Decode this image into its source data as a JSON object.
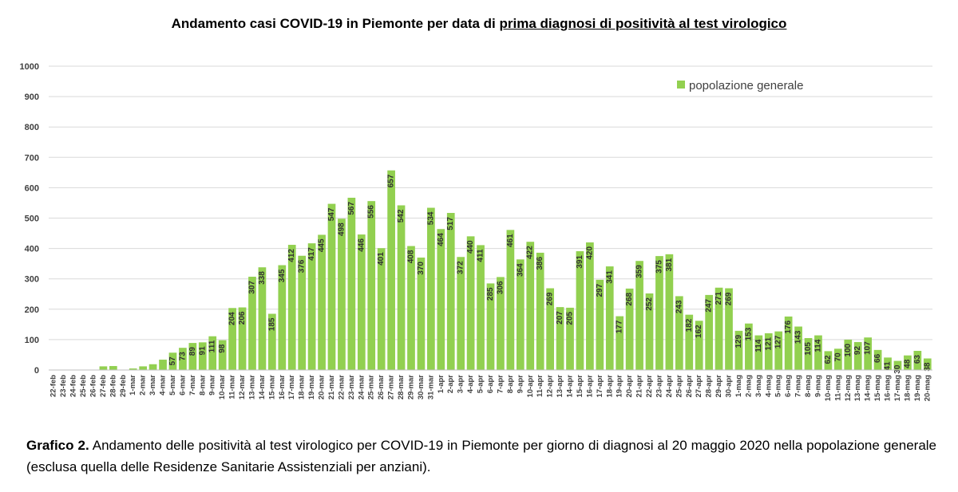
{
  "title": {
    "prefix": "Andamento casi COVID-19 in Piemonte per data di ",
    "underlined": "prima diagnosi di positività al test virologico"
  },
  "caption": {
    "label": "Grafico 2.",
    "text": " Andamento delle positività al test virologico per COVID-19 in Piemonte per giorno di diagnosi al 20 maggio 2020 nella popolazione generale (esclusa quella delle Residenze Sanitarie Assistenziali per anziani)."
  },
  "colors": {
    "bar": "#92D050",
    "grid": "#D9D9D9",
    "text": "#404040"
  },
  "chart_data": {
    "type": "bar",
    "title": "Andamento casi COVID-19 in Piemonte per data di prima diagnosi di positività al test virologico",
    "xlabel": "",
    "ylabel": "",
    "ylim": [
      0,
      1000
    ],
    "yticks": [
      0,
      100,
      200,
      300,
      400,
      500,
      600,
      700,
      800,
      900,
      1000
    ],
    "grid": true,
    "legend_position": "top-right",
    "categories": [
      "22-feb",
      "23-feb",
      "24-feb",
      "25-feb",
      "26-feb",
      "27-feb",
      "28-feb",
      "29-feb",
      "1-mar",
      "2-mar",
      "3-mar",
      "4-mar",
      "5-mar",
      "6-mar",
      "7-mar",
      "8-mar",
      "9-mar",
      "10-mar",
      "11-mar",
      "12-mar",
      "13-mar",
      "14-mar",
      "15-mar",
      "16-mar",
      "17-mar",
      "18-mar",
      "19-mar",
      "20-mar",
      "21-mar",
      "22-mar",
      "23-mar",
      "24-mar",
      "25-mar",
      "26-mar",
      "27-mar",
      "28-mar",
      "29-mar",
      "30-mar",
      "31-mar",
      "1-apr",
      "2-apr",
      "3-apr",
      "4-apr",
      "5-apr",
      "6-apr",
      "7-apr",
      "8-apr",
      "9-apr",
      "10-apr",
      "11-apr",
      "12-apr",
      "13-apr",
      "14-apr",
      "15-apr",
      "16-apr",
      "17-apr",
      "18-apr",
      "19-apr",
      "20-apr",
      "21-apr",
      "22-apr",
      "23-apr",
      "24-apr",
      "25-apr",
      "26-apr",
      "27-apr",
      "28-apr",
      "29-apr",
      "30-apr",
      "1-mag",
      "2-mag",
      "3-mag",
      "4-mag",
      "5-mag",
      "6-mag",
      "7-mag",
      "8-mag",
      "9-mag",
      "10-mag",
      "11-mag",
      "12-mag",
      "13-mag",
      "14-mag",
      "15-mag",
      "16-mag",
      "17-mag",
      "18-mag",
      "19-mag",
      "20-mag"
    ],
    "series": [
      {
        "name": "popolazione generale",
        "values": [
          0,
          0,
          0,
          0,
          0,
          12,
          13,
          0,
          5,
          12,
          19,
          34,
          57,
          73,
          89,
          91,
          111,
          98,
          204,
          206,
          307,
          338,
          185,
          345,
          412,
          376,
          417,
          445,
          547,
          498,
          567,
          446,
          556,
          401,
          657,
          542,
          408,
          370,
          534,
          464,
          517,
          372,
          440,
          411,
          285,
          306,
          461,
          364,
          422,
          386,
          269,
          207,
          205,
          391,
          420,
          297,
          341,
          177,
          268,
          359,
          252,
          375,
          381,
          243,
          182,
          162,
          247,
          271,
          269,
          129,
          153,
          114,
          121,
          127,
          176,
          143,
          105,
          114,
          62,
          70,
          100,
          92,
          107,
          66,
          41,
          30,
          48,
          63,
          38
        ],
        "labels": [
          "",
          "",
          "",
          "",
          "",
          "",
          "",
          "",
          "",
          "",
          "",
          "",
          "57",
          "73",
          "89",
          "91",
          "111",
          "98",
          "204",
          "206",
          "307",
          "338",
          "185",
          "345",
          "412",
          "376",
          "417",
          "445",
          "547",
          "498",
          "567",
          "446",
          "556",
          "401",
          "657",
          "542",
          "408",
          "370",
          "534",
          "464",
          "517",
          "372",
          "440",
          "411",
          "285",
          "306",
          "461",
          "364",
          "422",
          "386",
          "269",
          "207",
          "205",
          "391",
          "420",
          "297",
          "341",
          "177",
          "268",
          "359",
          "252",
          "375",
          "381",
          "243",
          "182",
          "162",
          "247",
          "271",
          "269",
          "129",
          "153",
          "114",
          "121",
          "127",
          "176",
          "143",
          "105",
          "114",
          "62",
          "70",
          "100",
          "92",
          "107",
          "66",
          "41",
          "30",
          "48",
          "63",
          "38"
        ]
      }
    ]
  }
}
